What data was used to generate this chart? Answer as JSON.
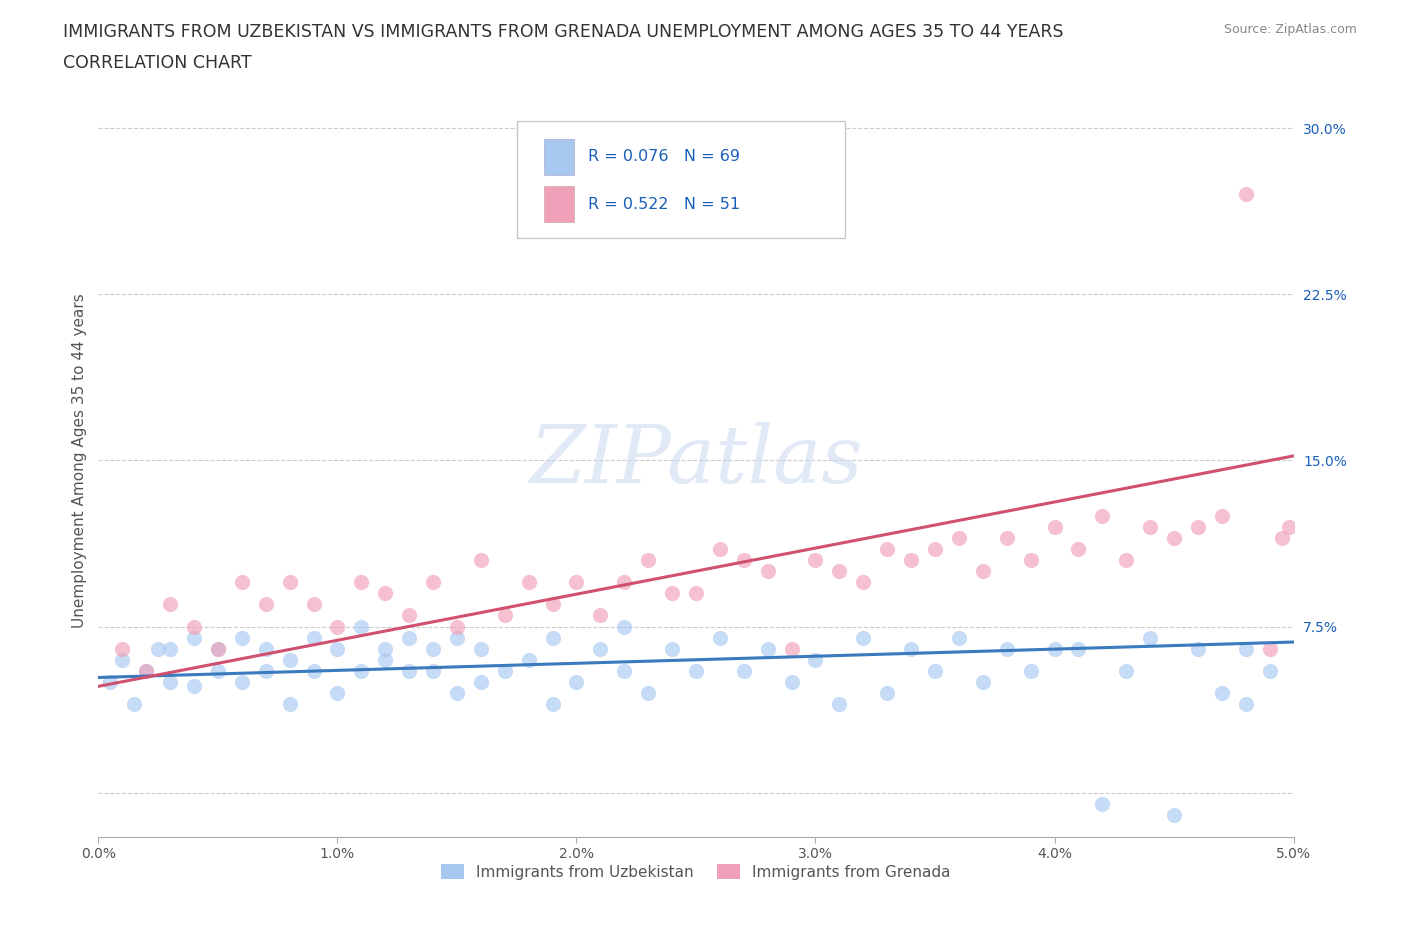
{
  "title_line1": "IMMIGRANTS FROM UZBEKISTAN VS IMMIGRANTS FROM GRENADA UNEMPLOYMENT AMONG AGES 35 TO 44 YEARS",
  "title_line2": "CORRELATION CHART",
  "source": "Source: ZipAtlas.com",
  "ylabel": "Unemployment Among Ages 35 to 44 years",
  "xlim": [
    0.0,
    0.05
  ],
  "ylim": [
    -0.02,
    0.32
  ],
  "xticks": [
    0.0,
    0.01,
    0.02,
    0.03,
    0.04,
    0.05
  ],
  "xticklabels": [
    "0.0%",
    "1.0%",
    "2.0%",
    "3.0%",
    "4.0%",
    "5.0%"
  ],
  "ytick_positions": [
    0.0,
    0.075,
    0.15,
    0.225,
    0.3
  ],
  "ytick_labels": [
    "",
    "7.5%",
    "15.0%",
    "22.5%",
    "30.0%"
  ],
  "watermark": "ZIPatlas",
  "series": [
    {
      "name": "Immigrants from Uzbekistan",
      "R": 0.076,
      "N": 69,
      "scatter_color": "#a8c8f0",
      "line_color": "#3a7abd",
      "x": [
        0.0005,
        0.001,
        0.0015,
        0.002,
        0.0025,
        0.003,
        0.003,
        0.004,
        0.004,
        0.005,
        0.005,
        0.006,
        0.006,
        0.007,
        0.007,
        0.008,
        0.008,
        0.009,
        0.009,
        0.01,
        0.01,
        0.011,
        0.011,
        0.012,
        0.012,
        0.013,
        0.013,
        0.014,
        0.014,
        0.015,
        0.015,
        0.016,
        0.016,
        0.017,
        0.018,
        0.019,
        0.019,
        0.02,
        0.021,
        0.022,
        0.022,
        0.023,
        0.024,
        0.025,
        0.026,
        0.027,
        0.028,
        0.029,
        0.03,
        0.031,
        0.032,
        0.033,
        0.034,
        0.035,
        0.036,
        0.037,
        0.038,
        0.039,
        0.04,
        0.041,
        0.042,
        0.043,
        0.044,
        0.045,
        0.046,
        0.047,
        0.048,
        0.048,
        0.049
      ],
      "y": [
        0.05,
        0.06,
        0.04,
        0.055,
        0.065,
        0.05,
        0.065,
        0.048,
        0.07,
        0.055,
        0.065,
        0.05,
        0.07,
        0.055,
        0.065,
        0.06,
        0.04,
        0.055,
        0.07,
        0.045,
        0.065,
        0.055,
        0.075,
        0.06,
        0.065,
        0.055,
        0.07,
        0.055,
        0.065,
        0.045,
        0.07,
        0.05,
        0.065,
        0.055,
        0.06,
        0.04,
        0.07,
        0.05,
        0.065,
        0.055,
        0.075,
        0.045,
        0.065,
        0.055,
        0.07,
        0.055,
        0.065,
        0.05,
        0.06,
        0.04,
        0.07,
        0.045,
        0.065,
        0.055,
        0.07,
        0.05,
        0.065,
        0.055,
        0.065,
        0.065,
        -0.005,
        0.055,
        0.07,
        -0.01,
        0.065,
        0.045,
        0.04,
        0.065,
        0.055
      ],
      "trend_x": [
        0.0,
        0.05
      ],
      "trend_y": [
        0.052,
        0.068
      ]
    },
    {
      "name": "Immigrants from Grenada",
      "R": 0.522,
      "N": 51,
      "scatter_color": "#f0a0b8",
      "line_color": "#d05070",
      "x": [
        0.001,
        0.002,
        0.003,
        0.004,
        0.005,
        0.006,
        0.007,
        0.008,
        0.009,
        0.01,
        0.011,
        0.012,
        0.013,
        0.014,
        0.015,
        0.016,
        0.017,
        0.018,
        0.019,
        0.02,
        0.021,
        0.022,
        0.023,
        0.024,
        0.025,
        0.026,
        0.027,
        0.028,
        0.029,
        0.03,
        0.031,
        0.032,
        0.033,
        0.034,
        0.035,
        0.036,
        0.037,
        0.038,
        0.039,
        0.04,
        0.041,
        0.042,
        0.043,
        0.044,
        0.045,
        0.046,
        0.047,
        0.048,
        0.049,
        0.0495,
        0.0498
      ],
      "y": [
        0.065,
        0.055,
        0.085,
        0.075,
        0.065,
        0.095,
        0.085,
        0.095,
        0.085,
        0.075,
        0.095,
        0.09,
        0.08,
        0.095,
        0.075,
        0.105,
        0.08,
        0.095,
        0.085,
        0.095,
        0.08,
        0.095,
        0.105,
        0.09,
        0.09,
        0.11,
        0.105,
        0.1,
        0.065,
        0.105,
        0.1,
        0.095,
        0.11,
        0.105,
        0.11,
        0.115,
        0.1,
        0.115,
        0.105,
        0.12,
        0.11,
        0.125,
        0.105,
        0.12,
        0.115,
        0.12,
        0.125,
        0.27,
        0.065,
        0.115,
        0.12
      ],
      "trend_x": [
        0.0,
        0.05
      ],
      "trend_y": [
        0.048,
        0.152
      ]
    }
  ],
  "legend_text_color": "#1a5fba",
  "grid_color": "#cccccc",
  "title_fontsize": 12.5,
  "axis_label_fontsize": 11,
  "tick_fontsize": 10,
  "background_color": "#ffffff"
}
